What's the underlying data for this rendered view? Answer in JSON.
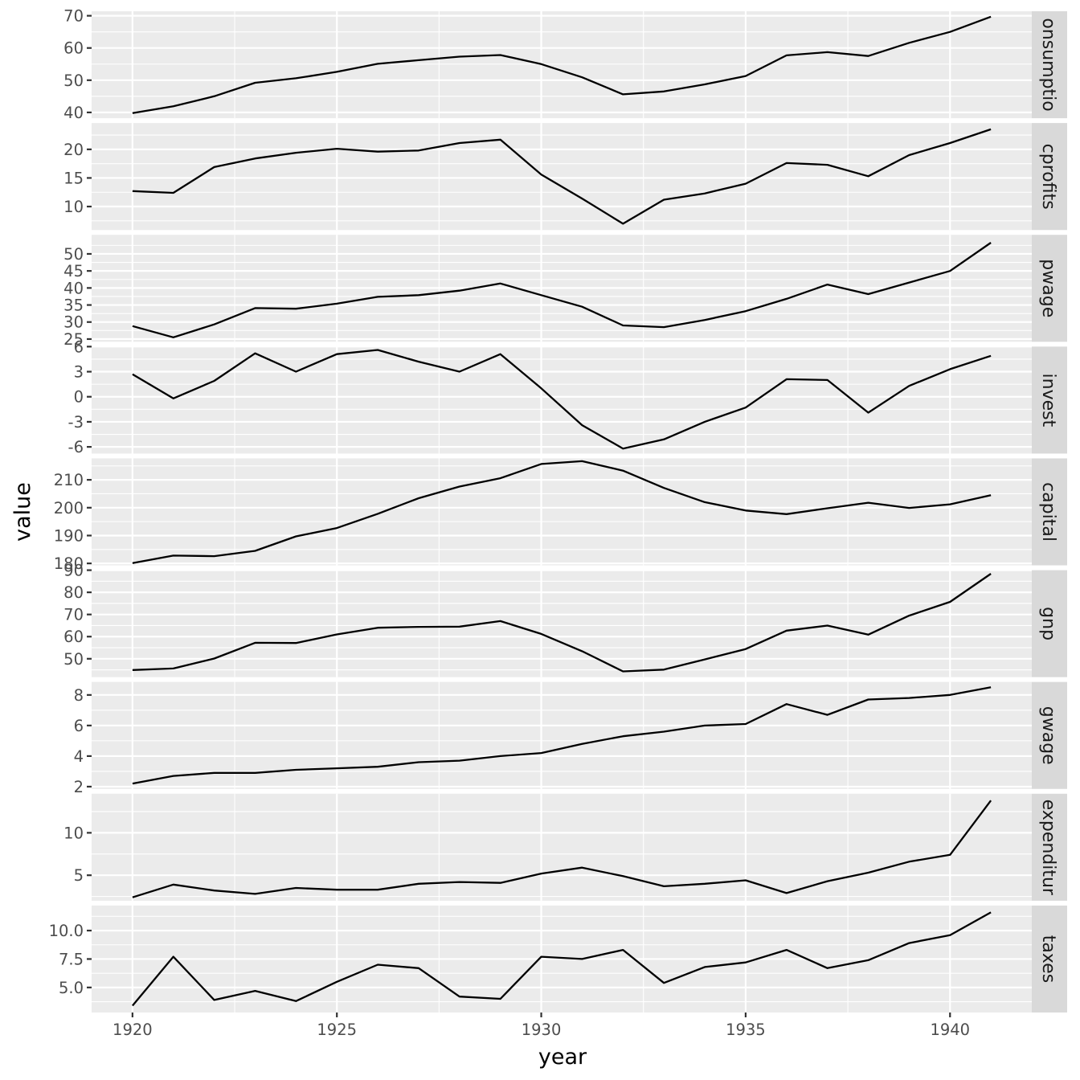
{
  "chart_data": {
    "type": "line",
    "xlabel": "year",
    "ylabel": "value",
    "xlim": [
      1919.0,
      1942.0
    ],
    "x_ticks": [
      1920,
      1925,
      1930,
      1935,
      1940
    ],
    "x": [
      1920,
      1921,
      1922,
      1923,
      1924,
      1925,
      1926,
      1927,
      1928,
      1929,
      1930,
      1931,
      1932,
      1933,
      1934,
      1935,
      1936,
      1937,
      1938,
      1939,
      1940,
      1941
    ],
    "grid": true,
    "facets": [
      {
        "name": "consumption",
        "strip_label": "onsumptio",
        "ylim": [
          38.2,
          71.4
        ],
        "y_ticks": [
          40,
          50,
          60,
          70
        ],
        "values": [
          39.8,
          41.9,
          45.0,
          49.2,
          50.6,
          52.6,
          55.1,
          56.2,
          57.3,
          57.8,
          55.0,
          50.9,
          45.6,
          46.5,
          48.7,
          51.3,
          57.7,
          58.7,
          57.5,
          61.6,
          65.0,
          69.7
        ]
      },
      {
        "name": "cprofits",
        "strip_label": "cprofits",
        "ylim": [
          5.9,
          24.6
        ],
        "y_ticks": [
          10,
          15,
          20
        ],
        "y_tick_labels": [
          "10",
          "15",
          "20"
        ],
        "values": [
          12.7,
          12.4,
          16.9,
          18.4,
          19.4,
          20.1,
          19.6,
          19.8,
          21.1,
          21.7,
          15.6,
          11.4,
          7.0,
          11.2,
          12.3,
          14.0,
          17.6,
          17.3,
          15.3,
          19.0,
          21.1,
          23.5
        ]
      },
      {
        "name": "pwage",
        "strip_label": "pwage",
        "ylim": [
          24.2,
          55.6
        ],
        "y_ticks": [
          25,
          30,
          35,
          40,
          45,
          50
        ],
        "values": [
          28.8,
          25.5,
          29.3,
          34.1,
          33.9,
          35.4,
          37.4,
          37.9,
          39.2,
          41.3,
          37.9,
          34.5,
          29.0,
          28.5,
          30.6,
          33.2,
          36.8,
          41.0,
          38.2,
          41.6,
          45.0,
          53.3
        ]
      },
      {
        "name": "invest",
        "strip_label": "invest",
        "ylim": [
          -6.8,
          6.0
        ],
        "y_ticks": [
          -6,
          -3,
          0,
          3,
          6
        ],
        "values": [
          2.7,
          -0.2,
          1.9,
          5.2,
          3.0,
          5.1,
          5.6,
          4.2,
          3.0,
          5.1,
          1.0,
          -3.4,
          -6.2,
          -5.1,
          -3.0,
          -1.3,
          2.1,
          2.0,
          -1.9,
          1.3,
          3.3,
          4.9
        ]
      },
      {
        "name": "capital",
        "strip_label": "capital",
        "ylim": [
          179.3,
          217.7
        ],
        "y_ticks": [
          180,
          190,
          200,
          210
        ],
        "values": [
          180.1,
          182.8,
          182.6,
          184.5,
          189.7,
          192.7,
          197.8,
          203.4,
          207.6,
          210.6,
          215.7,
          216.7,
          213.3,
          207.1,
          202.0,
          199.0,
          197.7,
          199.8,
          201.8,
          199.9,
          201.2,
          204.5
        ]
      },
      {
        "name": "gnp",
        "strip_label": "gnp",
        "ylim": [
          41.7,
          90.0
        ],
        "y_ticks": [
          50,
          60,
          70,
          80,
          90
        ],
        "values": [
          44.9,
          45.6,
          50.1,
          57.2,
          57.1,
          61.0,
          64.0,
          64.4,
          64.5,
          67.0,
          61.2,
          53.4,
          44.3,
          45.1,
          49.7,
          54.4,
          62.7,
          65.0,
          60.9,
          69.5,
          75.7,
          88.4
        ]
      },
      {
        "name": "gwage",
        "strip_label": "gwage",
        "ylim": [
          1.85,
          8.85
        ],
        "y_ticks": [
          2,
          4,
          6,
          8
        ],
        "values": [
          2.2,
          2.7,
          2.9,
          2.9,
          3.1,
          3.2,
          3.3,
          3.6,
          3.7,
          4.0,
          4.2,
          4.8,
          5.3,
          5.6,
          6.0,
          6.1,
          7.4,
          6.7,
          7.7,
          7.8,
          8.0,
          8.5
        ]
      },
      {
        "name": "expenditure",
        "strip_label": "expenditur",
        "ylim": [
          2.0,
          14.6
        ],
        "y_ticks": [
          5,
          10
        ],
        "values": [
          2.4,
          3.9,
          3.2,
          2.8,
          3.5,
          3.3,
          3.3,
          4.0,
          4.2,
          4.1,
          5.2,
          5.9,
          4.9,
          3.7,
          4.0,
          4.4,
          2.9,
          4.3,
          5.3,
          6.6,
          7.4,
          13.8
        ]
      },
      {
        "name": "taxes",
        "strip_label": "taxes",
        "ylim": [
          2.8,
          12.2
        ],
        "y_ticks": [
          5.0,
          7.5,
          10.0
        ],
        "y_tick_labels": [
          "5.0",
          "7.5",
          "10.0"
        ],
        "values": [
          3.4,
          7.7,
          3.9,
          4.7,
          3.8,
          5.5,
          7.0,
          6.7,
          4.2,
          4.0,
          7.7,
          7.5,
          8.3,
          5.4,
          6.8,
          7.2,
          8.3,
          6.7,
          7.4,
          8.9,
          9.6,
          11.6
        ]
      }
    ]
  }
}
